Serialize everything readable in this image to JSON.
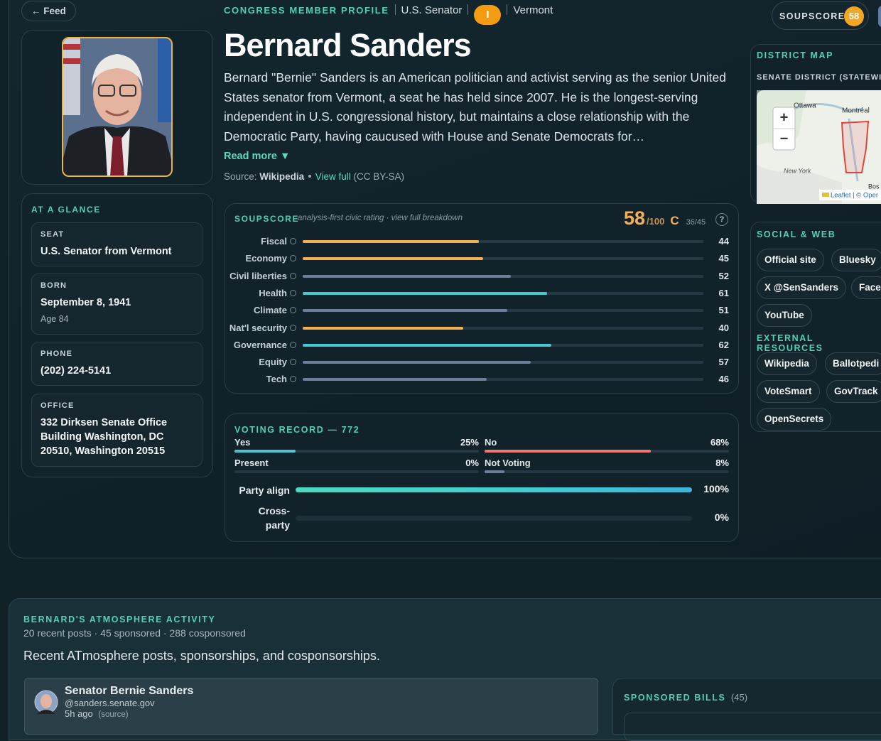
{
  "nav": {
    "back": "← Feed"
  },
  "header": {
    "eyebrow": "CONGRESS MEMBER PROFILE",
    "role": "U.S. Senator",
    "party": "I",
    "state": "Vermont",
    "badge_label": "SOUPSCORE"
  },
  "profile": {
    "name": "Bernard Sanders",
    "bio": "Bernard \"Bernie\" Sanders is an American politician and activist serving as the senior United States senator from Vermont, a seat he has held since 2007. He is the longest-serving independent in U.S. congressional history, but maintains a close relationship with the Democratic Party, having caucused with House and Senate Democrats for…",
    "read_more": "Read more ▼",
    "source": {
      "label": "Source:",
      "name": "Wikipedia",
      "link": "View full",
      "license": "(CC BY-SA)"
    }
  },
  "glance": {
    "title": "AT A GLANCE",
    "seat": {
      "label": "SEAT",
      "value": "U.S. Senator from Vermont"
    },
    "born": {
      "label": "BORN",
      "value": "September 8, 1941",
      "note": "Age 84"
    },
    "phone": {
      "label": "PHONE",
      "value": "(202) 224-5141"
    },
    "office": {
      "label": "OFFICE",
      "value": "332 Dirksen Senate Office Building Washington, DC 20510, Washington 20515"
    }
  },
  "soupscore": {
    "title": "SOUPSCORE",
    "subtitle": "analysis-first civic rating · view full breakdown",
    "score": 58,
    "out_of": "/100",
    "grade": "C",
    "rank": "36/45",
    "help": "?",
    "categories": [
      {
        "label": "Fiscal",
        "value": 44,
        "color": "#f5b056"
      },
      {
        "label": "Economy",
        "value": 45,
        "color": "#f5b056"
      },
      {
        "label": "Civil liberties",
        "value": 52,
        "color": "#6d7f98"
      },
      {
        "label": "Health",
        "value": 61,
        "color": "#45c9d0"
      },
      {
        "label": "Climate",
        "value": 51,
        "color": "#6d7f98"
      },
      {
        "label": "Nat'l security",
        "value": 40,
        "color": "#f5b056"
      },
      {
        "label": "Governance",
        "value": 62,
        "color": "#45c9d0"
      },
      {
        "label": "Equity",
        "value": 57,
        "color": "#6d7f98"
      },
      {
        "label": "Tech",
        "value": 46,
        "color": "#6d7f98"
      }
    ]
  },
  "voting": {
    "title": "VOTING RECORD — 772",
    "items": [
      {
        "label": "Yes",
        "value": 25,
        "value_label": "25%",
        "color": "#4fc3d0"
      },
      {
        "label": "No",
        "value": 68,
        "value_label": "68%",
        "color": "#ec7a70"
      },
      {
        "label": "Present",
        "value": 0,
        "value_label": "0%",
        "color": "#6d7f98"
      },
      {
        "label": "Not Voting",
        "value": 8,
        "value_label": "8%",
        "color": "#6d7f98"
      }
    ],
    "alignment": [
      {
        "label": "Party align",
        "value": 100,
        "value_label": "100%",
        "color": "#45c9d0"
      },
      {
        "label": "Cross-party",
        "value": 0,
        "value_label": "0%",
        "color": "#45c9d0"
      }
    ]
  },
  "map": {
    "title": "DISTRICT MAP",
    "subtitle": "SENATE DISTRICT (STATEWI",
    "zoom_in": "+",
    "zoom_out": "−",
    "labels": [
      "Ottawa",
      "Montréal",
      "New York",
      "Bos"
    ],
    "attribution": "Leaflet | © Oper"
  },
  "social": {
    "title": "SOCIAL & WEB",
    "links": [
      "Official site",
      "Bluesky",
      "X @SenSanders",
      "Face",
      "YouTube"
    ]
  },
  "resources": {
    "title": "EXTERNAL RESOURCES",
    "links": [
      "Wikipedia",
      "Ballotpedi",
      "VoteSmart",
      "GovTrack",
      "OpenSecrets"
    ]
  },
  "activity": {
    "title": "BERNARD'S ATMOSPHERE ACTIVITY",
    "stats": "20 recent posts · 45 sponsored · 288 cosponsored",
    "description": "Recent ATmosphere posts, sponsorships, and cosponsorships.",
    "post": {
      "author": "Senator Bernie Sanders",
      "handle": "@sanders.senate.gov",
      "time": "5h ago",
      "source": "(source)"
    },
    "sponsored": {
      "title": "SPONSORED BILLS",
      "count": "(45)"
    }
  }
}
